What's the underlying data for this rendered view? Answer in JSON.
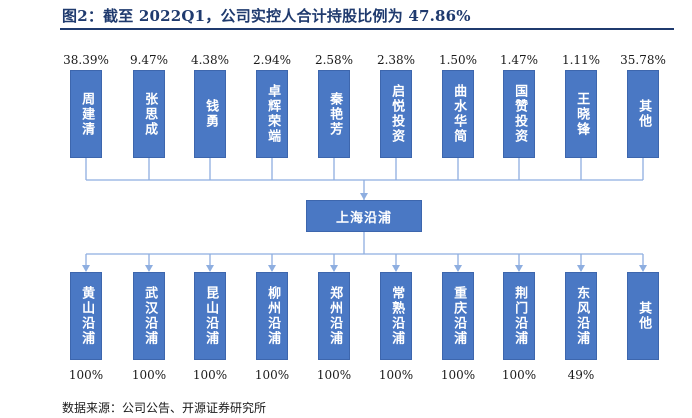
{
  "title": "图2：截至 2022Q1，公司实控人合计持股比例为 47.86%",
  "center": "上海沿浦",
  "shareholders": [
    {
      "name": "周建清",
      "pct": "38.39%"
    },
    {
      "name": "张思成",
      "pct": "9.47%"
    },
    {
      "name": "钱勇",
      "pct": "4.38%"
    },
    {
      "name": "卓辉荣端",
      "pct": "2.94%"
    },
    {
      "name": "秦艳芳",
      "pct": "2.58%"
    },
    {
      "name": "启悦投资",
      "pct": "2.38%"
    },
    {
      "name": "曲水华简",
      "pct": "1.50%"
    },
    {
      "name": "国赞投资",
      "pct": "1.47%"
    },
    {
      "name": "王晓锋",
      "pct": "1.11%"
    },
    {
      "name": "其他",
      "pct": "35.78%"
    }
  ],
  "subsidiaries": [
    {
      "name": "黄山沿浦",
      "pct": "100%"
    },
    {
      "name": "武汉沿浦",
      "pct": "100%"
    },
    {
      "name": "昆山沿浦",
      "pct": "100%"
    },
    {
      "name": "柳州沿浦",
      "pct": "100%"
    },
    {
      "name": "郑州沿浦",
      "pct": "100%"
    },
    {
      "name": "常熟沿浦",
      "pct": "100%"
    },
    {
      "name": "重庆沿浦",
      "pct": "100%"
    },
    {
      "name": "荆门沿浦",
      "pct": "100%"
    },
    {
      "name": "东风沿浦",
      "pct": "49%"
    },
    {
      "name": "其他",
      "pct": ""
    }
  ],
  "source": "数据来源：公司公告、开源证券研究所",
  "colors": {
    "box": "#4a78c4",
    "line": "#8eaee0",
    "title": "#1f3a6e"
  }
}
